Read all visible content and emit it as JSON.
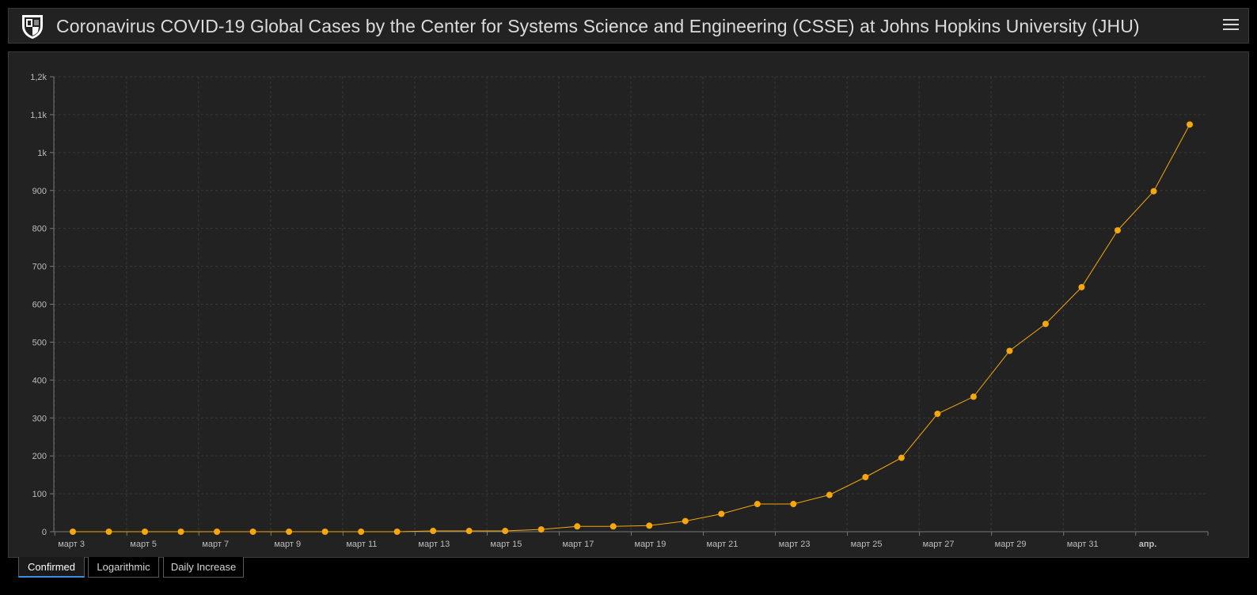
{
  "header": {
    "title": "Coronavirus COVID-19 Global Cases by the Center for Systems Science and Engineering (CSSE) at Johns Hopkins University (JHU)",
    "logo_icon": "jhu-shield-icon",
    "menu_icon": "hamburger-menu-icon"
  },
  "tabs": [
    {
      "label": "Confirmed",
      "active": true
    },
    {
      "label": "Logarithmic",
      "active": false
    },
    {
      "label": "Daily Increase",
      "active": false
    }
  ],
  "colors": {
    "series": "#f5a70d",
    "active_tab": "#3a8ee6",
    "background": "#222222"
  },
  "chart_data": {
    "type": "line",
    "title": "",
    "xlabel": "",
    "ylabel": "",
    "ylim": [
      0,
      1200
    ],
    "yticks": [
      0,
      100,
      200,
      300,
      400,
      500,
      600,
      700,
      800,
      900,
      1000,
      1100,
      1200
    ],
    "ytick_labels": [
      "0",
      "100",
      "200",
      "300",
      "400",
      "500",
      "600",
      "700",
      "800",
      "900",
      "1k",
      "1,1k",
      "1,2k"
    ],
    "xtick_labels": [
      "март 3",
      "март 5",
      "март 7",
      "март 9",
      "март 11",
      "март 13",
      "март 15",
      "март 17",
      "март 19",
      "март 21",
      "март 23",
      "март 25",
      "март 27",
      "март 29",
      "март 31",
      "апр."
    ],
    "x": [
      "2020-03-03",
      "2020-03-04",
      "2020-03-05",
      "2020-03-06",
      "2020-03-07",
      "2020-03-08",
      "2020-03-09",
      "2020-03-10",
      "2020-03-11",
      "2020-03-12",
      "2020-03-13",
      "2020-03-14",
      "2020-03-15",
      "2020-03-16",
      "2020-03-17",
      "2020-03-18",
      "2020-03-19",
      "2020-03-20",
      "2020-03-21",
      "2020-03-22",
      "2020-03-23",
      "2020-03-24",
      "2020-03-25",
      "2020-03-26",
      "2020-03-27",
      "2020-03-28",
      "2020-03-29",
      "2020-03-30",
      "2020-03-31",
      "2020-04-01",
      "2020-04-02",
      "2020-04-03"
    ],
    "series": [
      {
        "values": [
          0,
          0,
          0,
          0,
          0,
          0,
          0,
          0,
          0,
          0,
          2,
          2,
          2,
          6,
          14,
          14,
          16,
          28,
          47,
          73,
          73,
          97,
          144,
          195,
          311,
          356,
          477,
          548,
          645,
          795,
          898,
          1074
        ]
      }
    ],
    "grid": true,
    "legend": "none"
  }
}
